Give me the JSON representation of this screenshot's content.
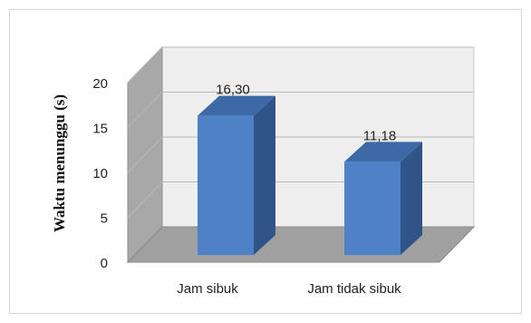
{
  "chart_data": {
    "type": "bar",
    "categories": [
      "Jam sibuk",
      "Jam tidak sibuk"
    ],
    "values": [
      16.3,
      11.18
    ],
    "data_labels": [
      "16,30",
      "11,18"
    ],
    "ylabel": "Waktu menunggu (s)",
    "xlabel": "",
    "ylim": [
      0,
      20
    ],
    "yticks": [
      0,
      5,
      10,
      15,
      20
    ],
    "ytick_labels": [
      "0",
      "5",
      "10",
      "15",
      "20"
    ],
    "grid": true,
    "style": "3d-column",
    "colors": {
      "bar_front": "#4f81c7",
      "bar_side": "#2f5588",
      "bar_top": "#3d6aa6",
      "wall": "#eeeeee",
      "side_wall": "#a8a8a8",
      "floor": "#a0a0a0",
      "grid": "#b8b8b8"
    }
  }
}
